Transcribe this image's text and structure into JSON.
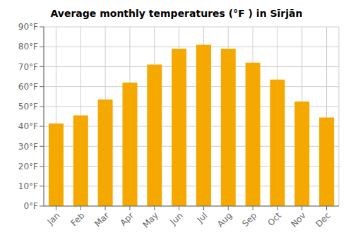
{
  "chart_data": {
    "type": "bar",
    "title": "Average monthly temperatures (°F ) in Sīrjān",
    "categories": [
      "Jan",
      "Feb",
      "Mar",
      "Apr",
      "May",
      "Jun",
      "Jul",
      "Aug",
      "Sep",
      "Oct",
      "Nov",
      "Dec"
    ],
    "values": [
      41.5,
      45.5,
      53.5,
      62,
      71,
      79,
      81,
      79,
      72,
      63.5,
      52.5,
      44.5
    ],
    "color": "#F5A800",
    "ylim": [
      0,
      90
    ],
    "yticks": [
      {
        "value": 0,
        "label": "0°F"
      },
      {
        "value": 10,
        "label": "10°F"
      },
      {
        "value": 20,
        "label": "20°F"
      },
      {
        "value": 30,
        "label": "30°F"
      },
      {
        "value": 40,
        "label": "40°F"
      },
      {
        "value": 50,
        "label": "50°F"
      },
      {
        "value": 60,
        "label": "60°F"
      },
      {
        "value": 70,
        "label": "70°F"
      },
      {
        "value": 80,
        "label": "80°F"
      },
      {
        "value": 90,
        "label": "90°F"
      }
    ],
    "grid": true
  }
}
